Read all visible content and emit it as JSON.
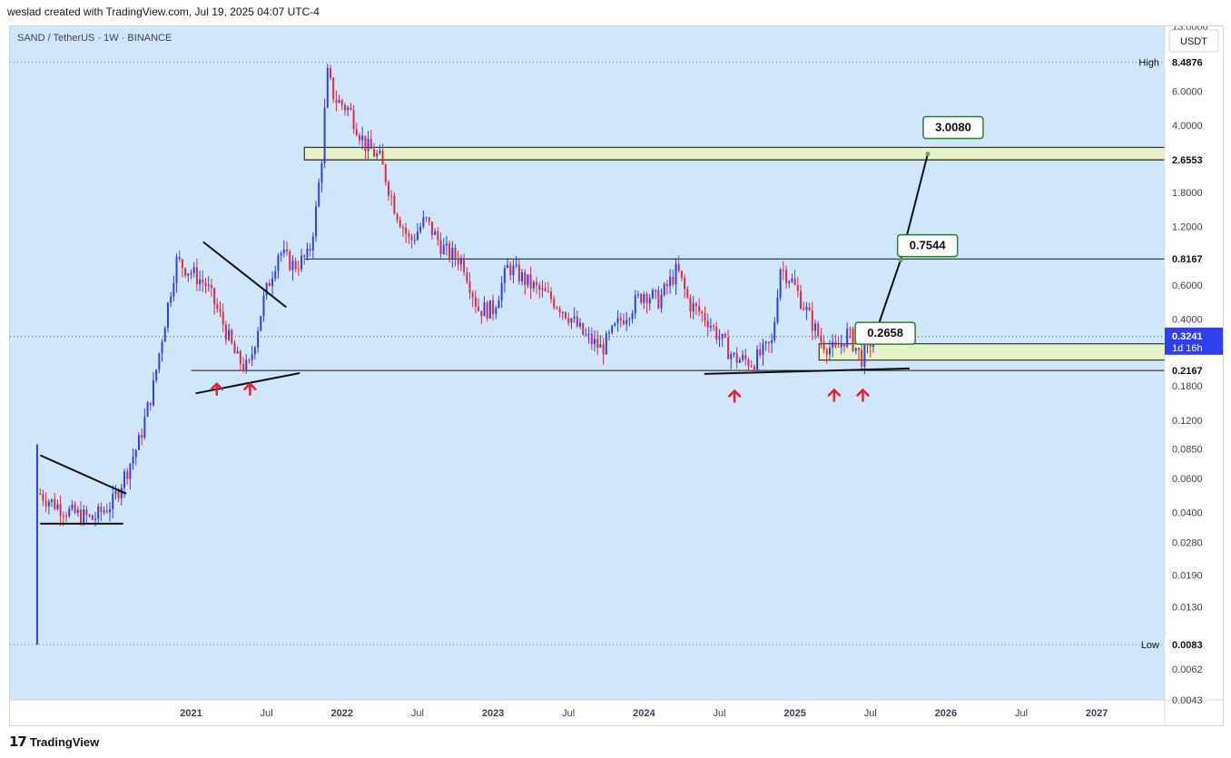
{
  "header": {
    "attribution": "weslad created with TradingView.com, Jul 19, 2025 04:07 UTC-4"
  },
  "chart_title": "SAND / TetherUS · 1W · BINANCE",
  "currency_button": "USDT",
  "footer": {
    "logo_glyph": "𝟭𝟳",
    "brand": "TradingView"
  },
  "colors": {
    "bg": "#cfe6fd",
    "up": "#2f3ff0",
    "down": "#e8293a",
    "zone": "#e6f3c6",
    "zone_border": "#141414",
    "label_border": "#2e7d32"
  },
  "chart_data": {
    "type": "candlestick",
    "title": "SAND / TetherUS · 1W · BINANCE",
    "scale": "log",
    "ylim": [
      0.0043,
      13.0
    ],
    "y_ticks": [
      13.0,
      6.0,
      4.0,
      1.8,
      1.2,
      0.6,
      0.4,
      0.18,
      0.12,
      0.085,
      0.06,
      0.04,
      0.028,
      0.019,
      0.013,
      0.0062,
      0.0043
    ],
    "y_tick_labels": [
      "13.0000",
      "6.0000",
      "4.0000",
      "1.8000",
      "1.2000",
      "0.6000",
      "0.4000",
      "0.1800",
      "0.1200",
      "0.0850",
      "0.0600",
      "0.0400",
      "0.0280",
      "0.0190",
      "0.0130",
      "0.0062",
      "0.0043"
    ],
    "x_ticks": [
      {
        "label": "2021",
        "t": 2021.0
      },
      {
        "label": "Jul",
        "t": 2021.5
      },
      {
        "label": "2022",
        "t": 2022.0
      },
      {
        "label": "Jul",
        "t": 2022.5
      },
      {
        "label": "2023",
        "t": 2023.0
      },
      {
        "label": "Jul",
        "t": 2023.5
      },
      {
        "label": "2024",
        "t": 2024.0
      },
      {
        "label": "Jul",
        "t": 2024.5
      },
      {
        "label": "2025",
        "t": 2025.0
      },
      {
        "label": "Jul",
        "t": 2025.5
      },
      {
        "label": "2026",
        "t": 2026.0
      },
      {
        "label": "Jul",
        "t": 2026.5
      },
      {
        "label": "2027",
        "t": 2027.0
      }
    ],
    "x_range": [
      2019.8,
      2027.45
    ],
    "high": {
      "label": "High",
      "value": 8.4876,
      "text": "8.4876"
    },
    "low": {
      "label": "Low",
      "value": 0.0083,
      "text": "0.0083"
    },
    "last_price": {
      "value": 0.3241,
      "text": "0.3241",
      "countdown": "1d 16h"
    },
    "price_levels": [
      {
        "value": 2.6553,
        "text": "2.6553"
      },
      {
        "value": 0.8167,
        "text": "0.8167"
      },
      {
        "value": 0.2167,
        "text": "0.2167"
      }
    ],
    "zones": [
      {
        "from_t": 2021.75,
        "to_t": 2027.45,
        "low": 2.6553,
        "high": 3.08
      },
      {
        "from_t": 2025.16,
        "to_t": 2027.45,
        "low": 0.245,
        "high": 0.2975
      }
    ],
    "targets": [
      {
        "text": "0.2658",
        "t": 2025.4,
        "value": 0.2658
      },
      {
        "text": "0.7544",
        "t": 2025.68,
        "value": 0.7544
      },
      {
        "text": "3.0080",
        "t": 2025.85,
        "value": 3.008
      }
    ],
    "projection_path": [
      {
        "t": 2025.53,
        "value": 0.33
      },
      {
        "t": 2025.7,
        "value": 0.805
      },
      {
        "t": 2025.88,
        "value": 2.85
      }
    ],
    "trendlines": [
      {
        "from": {
          "t": 2020.0,
          "value": 0.079
        },
        "to": {
          "t": 2020.57,
          "value": 0.05
        }
      },
      {
        "from": {
          "t": 2020.0,
          "value": 0.035
        },
        "to": {
          "t": 2020.55,
          "value": 0.035
        }
      },
      {
        "from": {
          "t": 2021.08,
          "value": 1.0
        },
        "to": {
          "t": 2021.63,
          "value": 0.46
        }
      },
      {
        "from": {
          "t": 2021.03,
          "value": 0.165
        },
        "to": {
          "t": 2021.72,
          "value": 0.21
        }
      },
      {
        "from": {
          "t": 2024.4,
          "value": 0.208
        },
        "to": {
          "t": 2025.76,
          "value": 0.222
        }
      }
    ],
    "support_arrows": [
      {
        "t": 2021.17,
        "value": 0.185
      },
      {
        "t": 2021.39,
        "value": 0.185
      },
      {
        "t": 2024.6,
        "value": 0.17
      },
      {
        "t": 2025.26,
        "value": 0.172
      },
      {
        "t": 2025.45,
        "value": 0.172
      }
    ],
    "close_path": [
      {
        "t": 2020.0,
        "value": 0.05
      },
      {
        "t": 2020.08,
        "value": 0.045
      },
      {
        "t": 2020.2,
        "value": 0.04
      },
      {
        "t": 2020.35,
        "value": 0.037
      },
      {
        "t": 2020.48,
        "value": 0.045
      },
      {
        "t": 2020.55,
        "value": 0.06
      },
      {
        "t": 2020.65,
        "value": 0.09
      },
      {
        "t": 2020.75,
        "value": 0.18
      },
      {
        "t": 2020.8,
        "value": 0.3
      },
      {
        "t": 2020.9,
        "value": 0.8
      },
      {
        "t": 2021.0,
        "value": 0.7
      },
      {
        "t": 2021.1,
        "value": 0.6
      },
      {
        "t": 2021.2,
        "value": 0.4
      },
      {
        "t": 2021.3,
        "value": 0.25
      },
      {
        "t": 2021.38,
        "value": 0.22
      },
      {
        "t": 2021.48,
        "value": 0.5
      },
      {
        "t": 2021.58,
        "value": 0.9
      },
      {
        "t": 2021.68,
        "value": 0.75
      },
      {
        "t": 2021.78,
        "value": 0.85
      },
      {
        "t": 2021.83,
        "value": 1.5
      },
      {
        "t": 2021.87,
        "value": 3.0
      },
      {
        "t": 2021.9,
        "value": 7.5
      },
      {
        "t": 2021.95,
        "value": 5.5
      },
      {
        "t": 2022.05,
        "value": 4.8
      },
      {
        "t": 2022.15,
        "value": 3.2
      },
      {
        "t": 2022.25,
        "value": 2.7
      },
      {
        "t": 2022.35,
        "value": 1.5
      },
      {
        "t": 2022.45,
        "value": 1.0
      },
      {
        "t": 2022.55,
        "value": 1.3
      },
      {
        "t": 2022.68,
        "value": 0.9
      },
      {
        "t": 2022.8,
        "value": 0.8
      },
      {
        "t": 2022.9,
        "value": 0.45
      },
      {
        "t": 2023.0,
        "value": 0.45
      },
      {
        "t": 2023.1,
        "value": 0.75
      },
      {
        "t": 2023.25,
        "value": 0.6
      },
      {
        "t": 2023.4,
        "value": 0.5
      },
      {
        "t": 2023.5,
        "value": 0.42
      },
      {
        "t": 2023.6,
        "value": 0.33
      },
      {
        "t": 2023.72,
        "value": 0.28
      },
      {
        "t": 2023.85,
        "value": 0.4
      },
      {
        "t": 2024.0,
        "value": 0.55
      },
      {
        "t": 2024.1,
        "value": 0.5
      },
      {
        "t": 2024.22,
        "value": 0.72
      },
      {
        "t": 2024.3,
        "value": 0.48
      },
      {
        "t": 2024.42,
        "value": 0.4
      },
      {
        "t": 2024.5,
        "value": 0.32
      },
      {
        "t": 2024.6,
        "value": 0.25
      },
      {
        "t": 2024.72,
        "value": 0.24
      },
      {
        "t": 2024.85,
        "value": 0.3
      },
      {
        "t": 2024.9,
        "value": 0.75
      },
      {
        "t": 2024.97,
        "value": 0.65
      },
      {
        "t": 2025.07,
        "value": 0.45
      },
      {
        "t": 2025.17,
        "value": 0.31
      },
      {
        "t": 2025.27,
        "value": 0.27
      },
      {
        "t": 2025.35,
        "value": 0.34
      },
      {
        "t": 2025.44,
        "value": 0.25
      },
      {
        "t": 2025.52,
        "value": 0.3241
      }
    ]
  }
}
